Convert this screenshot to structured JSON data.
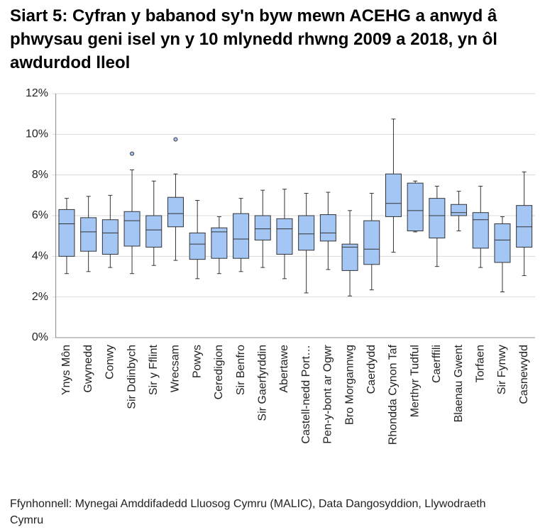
{
  "chart_data": {
    "type": "box",
    "title": "Siart 5: Cyfran y babanod sy'n byw mewn ACEHG a anwyd â phwysau geni isel yn y 10 mlynedd rhwng 2009 a 2018, yn ôl awdurdod lleol",
    "source": "Ffynhonnell: Mynegai Amddifadedd Lluosog Cymru (MALIC), Data Dangosyddion, Llywodraeth Cymru",
    "categories": [
      "Ynys Môn",
      "Gwynedd",
      "Conwy",
      "Sir Ddinbych",
      "Sir y Fflint",
      "Wrecsam",
      "Powys",
      "Ceredigion",
      "Sir Benfro",
      "Sir Gaerfyrddin",
      "Abertawe",
      "Castell-nedd Port…",
      "Pen-y-bont ar Ogwr",
      "Bro Morgannwg",
      "Caerdydd",
      "Rhondda Cynon Taf",
      "Merthyr Tudful",
      "Caerffili",
      "Blaenau Gwent",
      "Torfaen",
      "Sir Fynwy",
      "Casnewydd"
    ],
    "min": [
      3.15,
      3.25,
      3.45,
      3.15,
      3.55,
      3.8,
      2.9,
      3.15,
      3.25,
      3.45,
      2.9,
      2.2,
      3.35,
      2.05,
      2.35,
      4.2,
      5.2,
      3.5,
      5.25,
      3.45,
      2.25,
      3.05
    ],
    "q1": [
      4.0,
      4.25,
      4.1,
      4.5,
      4.45,
      5.45,
      3.85,
      3.9,
      3.9,
      4.8,
      4.1,
      4.3,
      4.75,
      3.3,
      3.6,
      5.95,
      5.25,
      4.9,
      6.0,
      4.4,
      3.7,
      4.45
    ],
    "median": [
      5.6,
      5.2,
      5.15,
      5.75,
      5.3,
      6.1,
      4.6,
      5.2,
      4.85,
      5.35,
      5.35,
      5.1,
      5.15,
      4.45,
      4.35,
      6.6,
      6.25,
      6.0,
      6.15,
      5.8,
      4.8,
      5.45
    ],
    "q3": [
      6.3,
      5.9,
      5.8,
      6.2,
      6.0,
      6.9,
      5.15,
      5.4,
      6.1,
      6.0,
      5.85,
      6.0,
      6.05,
      4.6,
      5.75,
      8.05,
      7.6,
      6.85,
      6.55,
      6.15,
      5.6,
      6.5
    ],
    "max": [
      6.85,
      6.95,
      7.0,
      8.25,
      7.7,
      8.05,
      6.75,
      5.95,
      6.85,
      7.25,
      7.3,
      7.1,
      7.15,
      6.25,
      7.1,
      10.75,
      7.7,
      7.45,
      7.2,
      7.45,
      5.95,
      8.15
    ],
    "outliers": [
      [],
      [],
      [],
      [
        9.05
      ],
      [],
      [
        9.75
      ],
      [],
      [],
      [],
      [],
      [],
      [],
      [],
      [],
      [],
      [],
      [],
      [],
      [],
      [],
      [],
      []
    ],
    "color": "#a4c6f4",
    "ylim": [
      0,
      12
    ],
    "yticks": [
      {
        "value": 0,
        "label": "0%"
      },
      {
        "value": 2,
        "label": "2%"
      },
      {
        "value": 4,
        "label": "4%"
      },
      {
        "value": 6,
        "label": "6%"
      },
      {
        "value": 8,
        "label": "8%"
      },
      {
        "value": 10,
        "label": "10%"
      },
      {
        "value": 12,
        "label": "12%"
      }
    ],
    "grid": true
  }
}
